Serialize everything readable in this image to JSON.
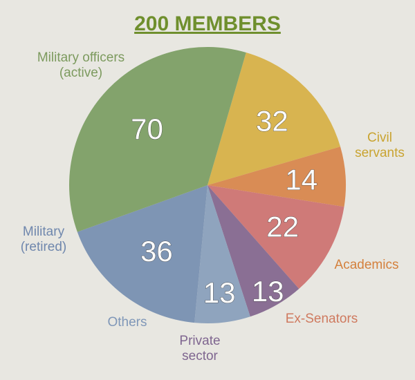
{
  "chart_data": {
    "type": "pie",
    "title": "200 MEMBERS",
    "title_color": "#6f8f2d",
    "start_angle_deg": -73.8,
    "direction": "clockwise",
    "slices": [
      {
        "label_lines": [
          "Civil",
          "servants"
        ],
        "value": 32,
        "color": "#d8b450",
        "label_color": "#c9a431"
      },
      {
        "label_lines": [
          "Academics"
        ],
        "value": 14,
        "color": "#d98c55",
        "label_color": "#d4803c"
      },
      {
        "label_lines": [
          "Ex-Senators"
        ],
        "value": 22,
        "color": "#cf7a78",
        "label_color": "#cf7a5f"
      },
      {
        "label_lines": [
          "Private",
          "sector"
        ],
        "value": 13,
        "color": "#8a6f94",
        "label_color": "#7f6690"
      },
      {
        "label_lines": [
          "Others"
        ],
        "value": 13,
        "color": "#8fa4be",
        "label_color": "#7f97b8"
      },
      {
        "label_lines": [
          "Military",
          "(retired)"
        ],
        "value": 36,
        "color": "#7e95b4",
        "label_color": "#6f87ad"
      },
      {
        "label_lines": [
          "Military officers",
          "(active)"
        ],
        "value": 70,
        "color": "#83a36c",
        "label_color": "#7c9a5e"
      }
    ]
  }
}
